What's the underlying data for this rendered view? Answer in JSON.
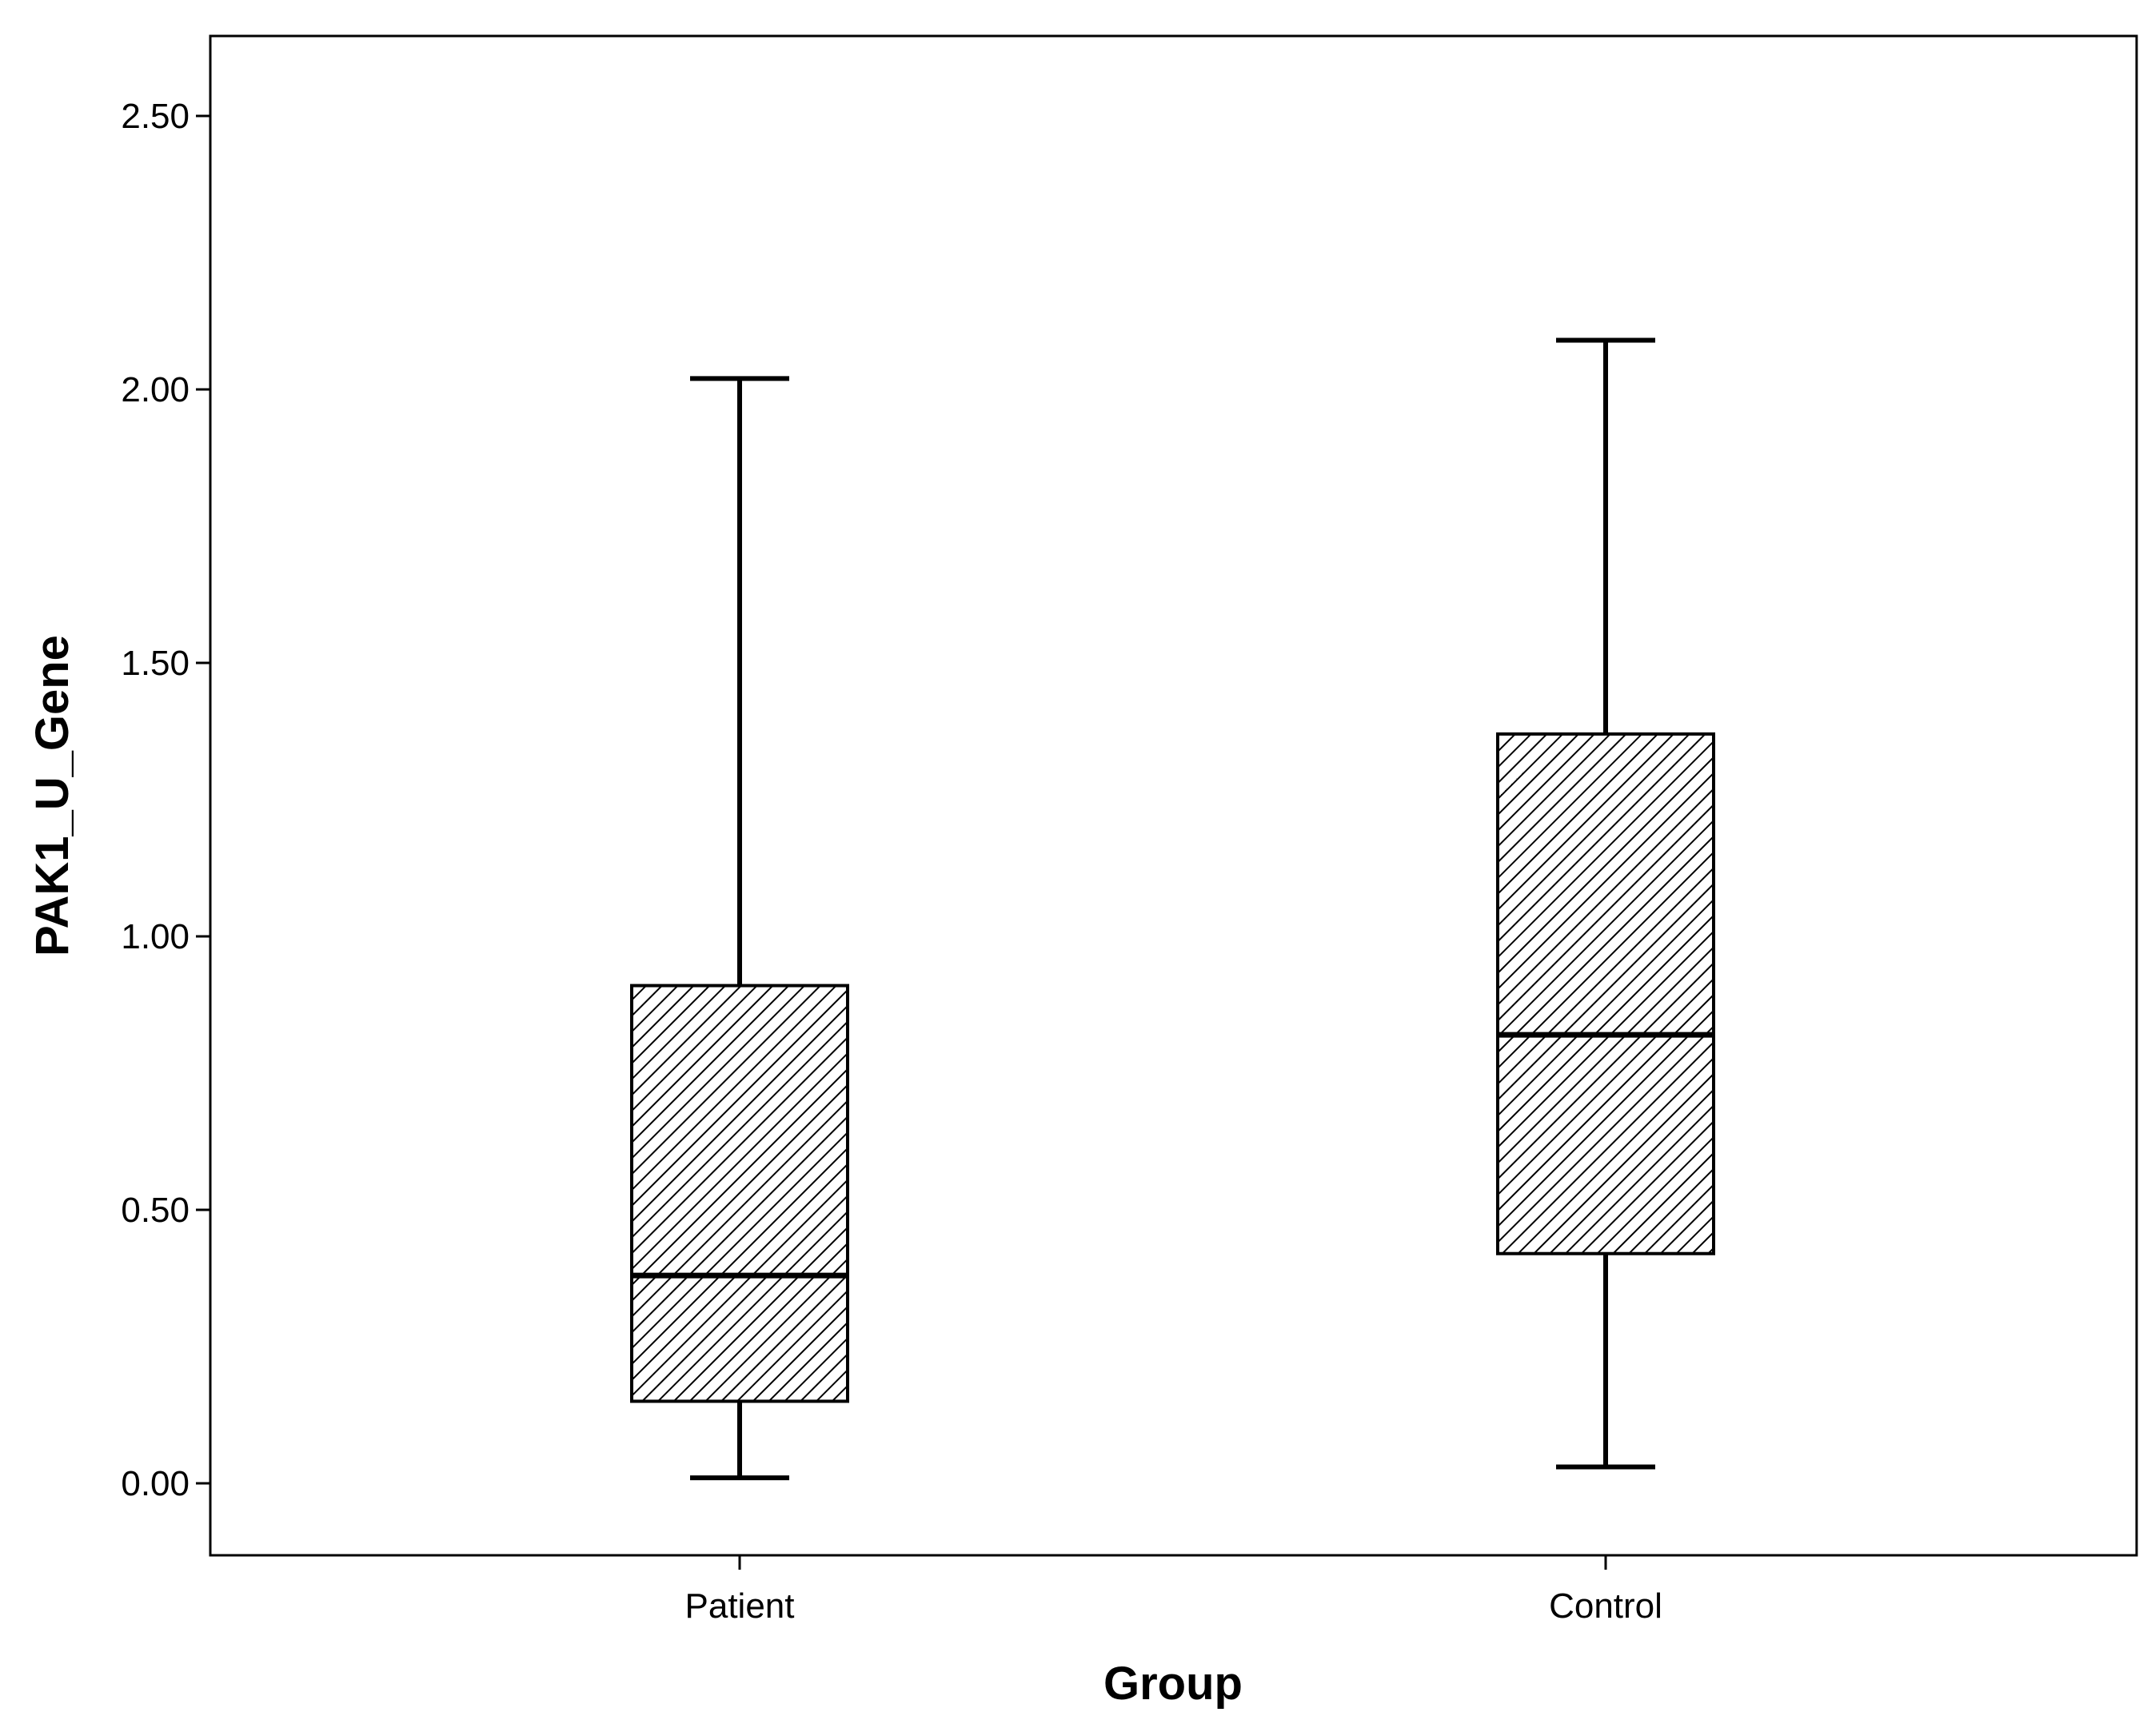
{
  "chart_data": {
    "type": "boxplot",
    "xlabel": "Group",
    "ylabel": "PAK1_U_Gene",
    "categories": [
      "Patient",
      "Control"
    ],
    "ylim": [
      -0.14,
      2.64
    ],
    "yticks": [
      "0.00",
      "0.50",
      "1.00",
      "1.50",
      "2.00",
      "2.50"
    ],
    "ytick_values": [
      0,
      0.5,
      1.0,
      1.5,
      2.0,
      2.5
    ],
    "boxes": [
      {
        "name": "Patient",
        "min": 0.01,
        "q1": 0.15,
        "median": 0.38,
        "q3": 0.91,
        "max": 2.02
      },
      {
        "name": "Control",
        "min": 0.03,
        "q1": 0.42,
        "median": 0.82,
        "q3": 1.37,
        "max": 2.09
      }
    ],
    "fill": "hatched",
    "grid": false,
    "colors": {
      "box_fill": "#ffffff",
      "hatch": "#000000",
      "line": "#000000"
    }
  }
}
